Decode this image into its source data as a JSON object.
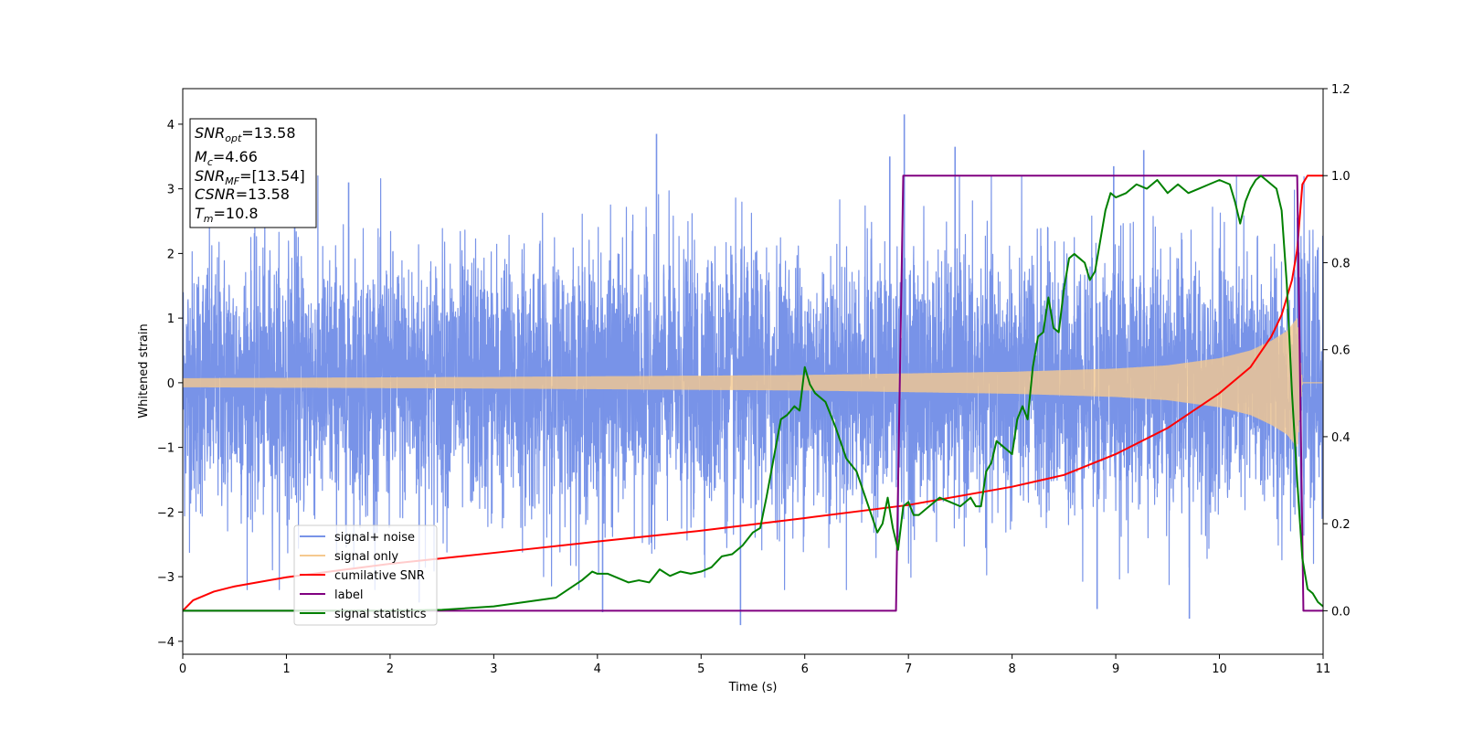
{
  "chart_data": {
    "type": "line",
    "title": "",
    "xlabel": "Time (s)",
    "ylabel": "Whitened strain",
    "xlim": [
      0,
      11
    ],
    "ylim_left": [
      -4.2,
      4.55
    ],
    "ylim_right": [
      -0.1,
      1.2
    ],
    "x_ticks": [
      "0",
      "1",
      "2",
      "3",
      "4",
      "5",
      "6",
      "7",
      "8",
      "9",
      "10",
      "11"
    ],
    "y_ticks_left": [
      "−4",
      "−3",
      "−2",
      "−1",
      "0",
      "1",
      "2",
      "3",
      "4"
    ],
    "y_ticks_right": [
      "0.0",
      "0.2",
      "0.4",
      "0.6",
      "0.8",
      "1.0",
      "1.2"
    ],
    "grid": false,
    "legend_position": "lower-left",
    "info_box": {
      "lines": [
        {
          "sym": "SNR",
          "sub": "opt",
          "val": "=13.58"
        },
        {
          "sym": "M",
          "sub": "c",
          "val": "=4.66"
        },
        {
          "sym": "SNR",
          "sub": "MF",
          "val": "=[13.54]"
        },
        {
          "sym": "CSNR",
          "sub": "",
          "val": "=13.58"
        },
        {
          "sym": "T",
          "sub": "m",
          "val": "=10.8"
        }
      ]
    },
    "series": [
      {
        "name": "signal+ noise",
        "axis": "left",
        "color": "#7893e8",
        "kind": "noise",
        "sigma": 1.0,
        "spikes": [
          [
            1.6,
            3.1
          ],
          [
            4.57,
            3.85
          ],
          [
            6.96,
            4.15
          ],
          [
            7.45,
            3.65
          ],
          [
            9.27,
            3.6
          ],
          [
            8.98,
            3.35
          ],
          [
            6.82,
            3.5
          ],
          [
            5.38,
            -3.75
          ],
          [
            9.71,
            -3.65
          ],
          [
            4.05,
            -3.55
          ],
          [
            8.82,
            -3.5
          ],
          [
            2.28,
            -3.4
          ],
          [
            1.08,
            3.3
          ]
        ]
      },
      {
        "name": "signal only",
        "axis": "left",
        "color": "#f5c98f",
        "kind": "chirp",
        "amplitude": [
          [
            0,
            0.07
          ],
          [
            3,
            0.09
          ],
          [
            6,
            0.12
          ],
          [
            8,
            0.17
          ],
          [
            9,
            0.22
          ],
          [
            9.5,
            0.27
          ],
          [
            10,
            0.38
          ],
          [
            10.3,
            0.5
          ],
          [
            10.5,
            0.65
          ],
          [
            10.65,
            0.8
          ],
          [
            10.75,
            1.0
          ],
          [
            10.8,
            0.0
          ],
          [
            11,
            0.0
          ]
        ]
      },
      {
        "name": "cumilative SNR",
        "axis": "right",
        "color": "#ff0000",
        "kind": "line",
        "x": [
          0,
          0.1,
          0.3,
          0.5,
          1,
          2,
          3,
          4,
          5,
          6,
          7,
          8,
          8.5,
          9,
          9.5,
          10,
          10.3,
          10.5,
          10.6,
          10.7,
          10.75,
          10.8,
          10.85,
          11
        ],
        "y": [
          0.0,
          0.024,
          0.044,
          0.056,
          0.077,
          0.108,
          0.133,
          0.159,
          0.184,
          0.213,
          0.243,
          0.285,
          0.312,
          0.36,
          0.42,
          0.5,
          0.56,
          0.63,
          0.68,
          0.76,
          0.83,
          0.98,
          1.0,
          1.0
        ]
      },
      {
        "name": "label",
        "axis": "right",
        "color": "#800080",
        "kind": "line",
        "x": [
          0,
          6.88,
          6.95,
          10.75,
          10.81,
          11
        ],
        "y": [
          0.0,
          0.0,
          1.0,
          1.0,
          0.0,
          0.0
        ]
      },
      {
        "name": "signal statistics",
        "axis": "right",
        "color": "#008000",
        "kind": "line",
        "x": [
          0,
          1,
          2,
          2.5,
          3,
          3.3,
          3.6,
          3.85,
          3.95,
          4.0,
          4.1,
          4.2,
          4.3,
          4.4,
          4.5,
          4.6,
          4.7,
          4.8,
          4.9,
          5.0,
          5.1,
          5.2,
          5.3,
          5.4,
          5.5,
          5.57,
          5.63,
          5.7,
          5.77,
          5.83,
          5.9,
          5.95,
          6.0,
          6.05,
          6.1,
          6.2,
          6.3,
          6.4,
          6.5,
          6.6,
          6.7,
          6.75,
          6.8,
          6.85,
          6.9,
          6.95,
          7.0,
          7.05,
          7.1,
          7.2,
          7.3,
          7.4,
          7.5,
          7.55,
          7.6,
          7.65,
          7.7,
          7.75,
          7.8,
          7.85,
          7.9,
          8.0,
          8.05,
          8.1,
          8.15,
          8.2,
          8.25,
          8.3,
          8.35,
          8.4,
          8.45,
          8.5,
          8.55,
          8.6,
          8.65,
          8.7,
          8.75,
          8.8,
          8.85,
          8.9,
          8.95,
          9.0,
          9.1,
          9.2,
          9.3,
          9.4,
          9.5,
          9.6,
          9.7,
          9.8,
          9.9,
          10.0,
          10.1,
          10.15,
          10.2,
          10.25,
          10.3,
          10.35,
          10.4,
          10.45,
          10.5,
          10.55,
          10.6,
          10.65,
          10.7,
          10.75,
          10.8,
          10.85,
          10.9,
          10.95,
          11
        ],
        "y": [
          0.0,
          0.0,
          0.0,
          0.002,
          0.01,
          0.02,
          0.03,
          0.07,
          0.09,
          0.085,
          0.085,
          0.075,
          0.065,
          0.07,
          0.065,
          0.095,
          0.08,
          0.09,
          0.085,
          0.09,
          0.1,
          0.125,
          0.13,
          0.15,
          0.18,
          0.19,
          0.26,
          0.35,
          0.44,
          0.45,
          0.47,
          0.46,
          0.56,
          0.52,
          0.5,
          0.48,
          0.42,
          0.35,
          0.32,
          0.25,
          0.18,
          0.2,
          0.26,
          0.19,
          0.14,
          0.24,
          0.25,
          0.22,
          0.22,
          0.24,
          0.26,
          0.25,
          0.24,
          0.25,
          0.26,
          0.24,
          0.24,
          0.32,
          0.34,
          0.39,
          0.38,
          0.36,
          0.44,
          0.47,
          0.44,
          0.56,
          0.63,
          0.64,
          0.72,
          0.65,
          0.64,
          0.74,
          0.81,
          0.82,
          0.81,
          0.8,
          0.76,
          0.78,
          0.85,
          0.92,
          0.96,
          0.95,
          0.96,
          0.98,
          0.97,
          0.99,
          0.96,
          0.98,
          0.96,
          0.97,
          0.98,
          0.99,
          0.98,
          0.94,
          0.89,
          0.94,
          0.97,
          0.99,
          1.0,
          0.99,
          0.98,
          0.97,
          0.92,
          0.75,
          0.5,
          0.3,
          0.12,
          0.05,
          0.04,
          0.02,
          0.01
        ]
      }
    ]
  }
}
